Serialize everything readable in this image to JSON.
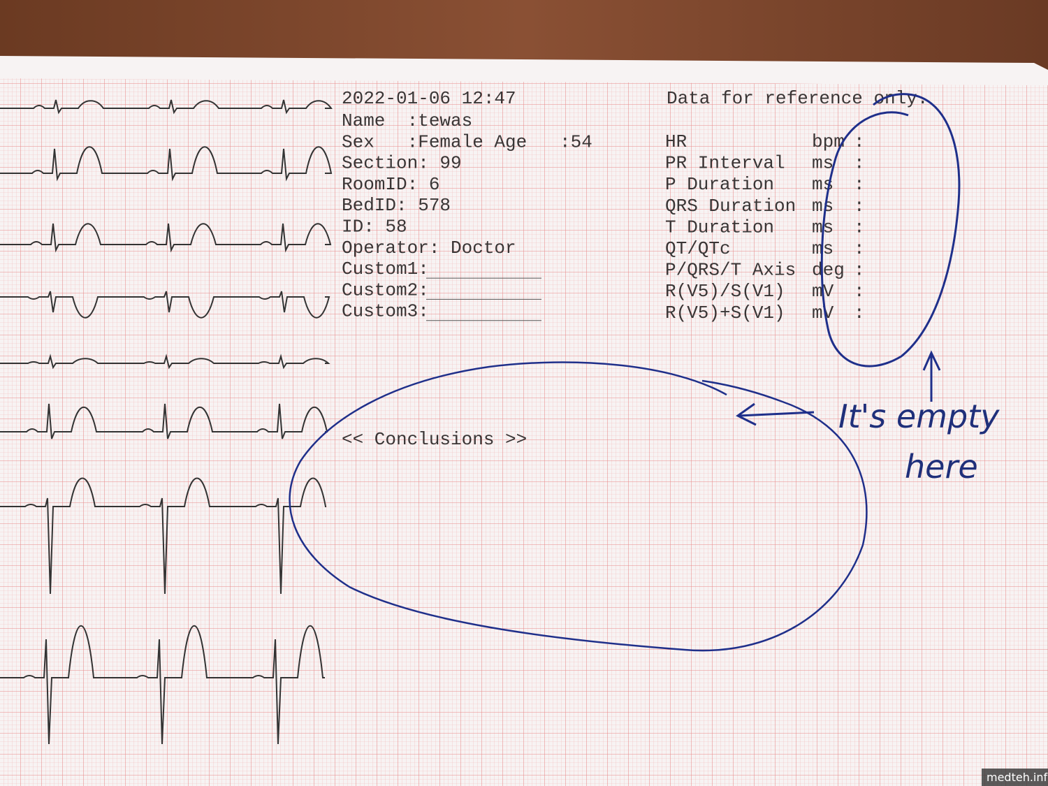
{
  "header": {
    "datetime": "2022-01-06 12:47",
    "disclaimer": "Data for reference only."
  },
  "patient": [
    "Name  :tewas",
    "Sex   :Female Age   :54",
    "Section: 99",
    "RoomID: 6",
    "BedID: 578",
    "ID: 58",
    "Operator: Doctor",
    "Custom1:",
    "Custom2:",
    "Custom3:"
  ],
  "measurements": [
    {
      "label": "HR",
      "unit": "bpm",
      "colon": ":"
    },
    {
      "label": "PR Interval",
      "unit": "ms",
      "colon": ":"
    },
    {
      "label": "P Duration",
      "unit": "ms",
      "colon": ":"
    },
    {
      "label": "QRS Duration",
      "unit": "ms",
      "colon": ":"
    },
    {
      "label": "T Duration",
      "unit": "ms",
      "colon": ":"
    },
    {
      "label": "QT/QTc",
      "unit": "ms",
      "colon": ":"
    },
    {
      "label": "P/QRS/T Axis",
      "unit": "deg",
      "colon": ":"
    },
    {
      "label": "R(V5)/S(V1)",
      "unit": "mV",
      "colon": ":"
    },
    {
      "label": "R(V5)+S(V1)",
      "unit": "mV",
      "colon": ":"
    }
  ],
  "conclusions": "<< Conclusions >>",
  "annotation": {
    "line1": "It's empty",
    "line2": "here"
  },
  "watermark": "medteh.info"
}
